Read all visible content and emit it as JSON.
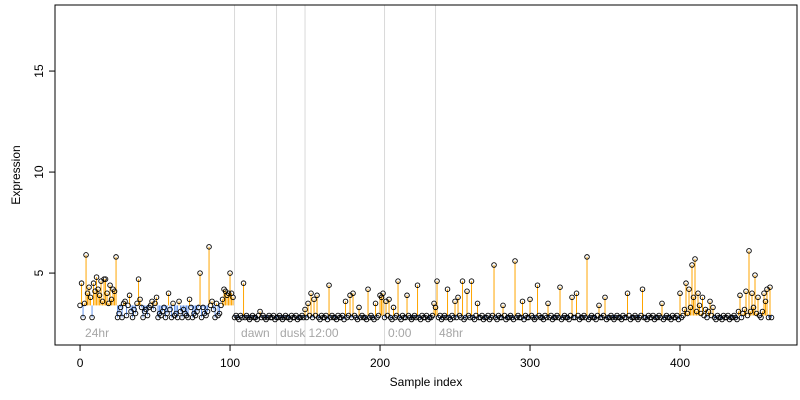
{
  "chart_data": {
    "type": "stem",
    "x_label": "Sample index",
    "y_label": "Expression",
    "xlim": [
      -16.7,
      478
    ],
    "ylim": [
      1.44,
      18.27
    ],
    "xticks": [
      0,
      100,
      200,
      300,
      400
    ],
    "yticks": [
      5,
      10,
      15
    ],
    "colors": {
      "above": "#ffa500",
      "below": "#6495ed",
      "point": "#000000",
      "vline": "#d9d9d9",
      "annotation": "#a6a6a6"
    },
    "baselines": [
      {
        "start": 0,
        "end": 102,
        "value": 3.4
      },
      {
        "start": 103,
        "end": 461,
        "value": 2.9
      }
    ],
    "vlines": [
      103,
      131,
      150,
      203,
      237
    ],
    "annotations": [
      {
        "x": 2,
        "text": "24hr"
      },
      {
        "x": 106,
        "text": "dawn"
      },
      {
        "x": 132,
        "text": "dusk"
      },
      {
        "x": 151,
        "text": "12:00"
      },
      {
        "x": 204,
        "text": "0:00"
      },
      {
        "x": 238,
        "text": "48hr"
      }
    ],
    "values": [
      3.4,
      4.5,
      2.8,
      3.5,
      5.9,
      4.0,
      4.3,
      3.8,
      2.8,
      4.5,
      4.1,
      4.8,
      4.2,
      3.9,
      4.6,
      3.6,
      4.7,
      4.7,
      4.0,
      3.5,
      4.4,
      3.7,
      4.2,
      4.1,
      5.8,
      2.8,
      3.0,
      3.3,
      2.8,
      3.5,
      3.6,
      2.9,
      3.4,
      3.9,
      3.1,
      2.8,
      3.2,
      3.0,
      3.5,
      4.7,
      3.7,
      3.3,
      2.8,
      3.1,
      3.2,
      2.9,
      3.3,
      3.4,
      3.6,
      3.2,
      3.5,
      3.8,
      2.8,
      3.0,
      2.9,
      3.1,
      3.3,
      2.8,
      3.0,
      4.0,
      3.2,
      2.8,
      3.5,
      2.9,
      3.0,
      2.8,
      3.6,
      3.1,
      2.8,
      3.2,
      3.0,
      2.9,
      2.8,
      3.7,
      3.3,
      2.8,
      3.0,
      2.9,
      3.1,
      3.3,
      5.0,
      2.8,
      3.3,
      3.0,
      2.9,
      3.1,
      6.3,
      3.4,
      3.6,
      3.2,
      2.8,
      3.5,
      2.9,
      3.0,
      3.4,
      3.7,
      4.2,
      4.1,
      3.9,
      4.0,
      5.0,
      4.0,
      3.8,
      2.8,
      2.9,
      2.8,
      2.7,
      2.9,
      2.8,
      4.5,
      2.8,
      2.9,
      2.8,
      2.7,
      2.8,
      2.9,
      2.8,
      2.8,
      2.7,
      2.9,
      3.1,
      2.8,
      2.9,
      2.8,
      2.7,
      2.8,
      2.9,
      2.8,
      2.8,
      2.9,
      2.7,
      2.8,
      2.8,
      2.9,
      2.8,
      2.7,
      2.8,
      2.9,
      2.8,
      2.8,
      2.7,
      2.9,
      2.8,
      2.8,
      2.9,
      2.7,
      2.8,
      2.8,
      2.9,
      2.8,
      3.2,
      2.8,
      3.5,
      2.9,
      4.0,
      2.8,
      3.7,
      2.9,
      3.9,
      2.8,
      2.7,
      2.9,
      2.8,
      2.8,
      2.9,
      2.7,
      4.4,
      2.8,
      2.9,
      2.8,
      2.8,
      2.7,
      2.9,
      2.8,
      2.8,
      2.9,
      2.7,
      3.6,
      2.8,
      2.9,
      3.9,
      2.8,
      4.0,
      2.9,
      2.8,
      2.7,
      3.3,
      2.8,
      2.9,
      2.8,
      2.8,
      2.7,
      4.2,
      2.8,
      2.9,
      2.8,
      2.7,
      3.5,
      2.8,
      2.9,
      3.9,
      3.8,
      4.0,
      2.8,
      3.6,
      2.9,
      3.7,
      2.8,
      2.7,
      3.3,
      2.8,
      2.9,
      4.6,
      2.8,
      2.7,
      2.9,
      2.8,
      2.8,
      3.9,
      2.9,
      2.8,
      2.7,
      2.8,
      2.9,
      2.8,
      4.4,
      2.8,
      2.7,
      2.9,
      2.8,
      2.8,
      2.9,
      2.7,
      2.8,
      2.8,
      2.9,
      3.5,
      3.3,
      4.6,
      2.8,
      2.9,
      2.7,
      2.8,
      2.9,
      2.8,
      4.2,
      2.8,
      2.7,
      2.9,
      2.8,
      3.6,
      2.8,
      3.8,
      2.9,
      2.8,
      4.6,
      2.7,
      2.8,
      4.1,
      2.9,
      2.8,
      4.6,
      2.8,
      2.7,
      2.9,
      3.5,
      2.8,
      2.8,
      2.9,
      2.7,
      2.8,
      2.8,
      2.9,
      2.7,
      2.8,
      2.9,
      5.4,
      2.8,
      2.7,
      2.9,
      2.8,
      2.8,
      3.4,
      2.9,
      2.7,
      2.8,
      2.8,
      2.9,
      2.8,
      2.7,
      5.6,
      2.8,
      2.9,
      2.8,
      2.8,
      3.6,
      2.7,
      2.9,
      2.8,
      2.8,
      3.7,
      2.9,
      2.8,
      2.7,
      2.8,
      4.4,
      2.9,
      2.8,
      2.8,
      2.7,
      2.9,
      2.8,
      3.5,
      2.8,
      2.9,
      2.7,
      2.8,
      2.8,
      2.9,
      2.8,
      4.3,
      2.7,
      2.8,
      2.9,
      2.8,
      2.8,
      2.7,
      2.9,
      3.8,
      2.8,
      2.8,
      4.0,
      2.9,
      2.7,
      2.8,
      2.8,
      2.9,
      2.8,
      5.8,
      2.7,
      2.8,
      2.9,
      2.8,
      2.8,
      2.7,
      2.9,
      3.4,
      2.8,
      2.8,
      2.9,
      3.8,
      2.7,
      2.8,
      2.8,
      2.9,
      2.8,
      2.7,
      2.8,
      2.9,
      2.8,
      2.8,
      2.7,
      2.9,
      2.8,
      2.8,
      4.0,
      2.9,
      2.7,
      2.8,
      2.8,
      2.9,
      2.8,
      2.7,
      2.8,
      2.9,
      4.2,
      2.8,
      2.8,
      2.7,
      2.9,
      2.8,
      2.8,
      2.9,
      2.7,
      2.8,
      2.8,
      2.9,
      2.8,
      3.5,
      2.7,
      2.8,
      2.9,
      2.8,
      2.8,
      2.7,
      2.9,
      2.8,
      2.8,
      2.9,
      2.7,
      4.0,
      2.8,
      2.9,
      3.2,
      4.5,
      3.0,
      4.2,
      3.3,
      5.4,
      3.8,
      5.7,
      3.1,
      4.0,
      3.4,
      3.0,
      3.8,
      2.9,
      3.2,
      2.8,
      3.1,
      3.6,
      2.9,
      3.3,
      2.8,
      2.7,
      2.9,
      2.8,
      2.8,
      2.7,
      2.9,
      2.8,
      2.8,
      2.9,
      2.7,
      2.8,
      2.8,
      2.9,
      2.8,
      2.7,
      3.1,
      3.9,
      2.8,
      3.0,
      3.2,
      4.1,
      2.9,
      6.1,
      3.1,
      4.0,
      3.3,
      4.9,
      3.0,
      3.8,
      2.9,
      2.8,
      3.1,
      4.0,
      3.6,
      4.2,
      2.8,
      4.3,
      2.8
    ]
  }
}
